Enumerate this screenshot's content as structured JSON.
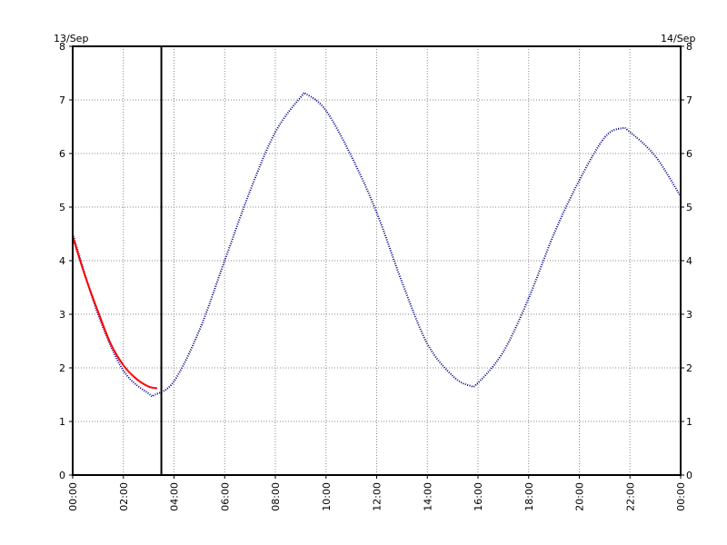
{
  "chart_data": {
    "type": "line",
    "title": "",
    "xlabel": "",
    "ylabel": "",
    "date_start_label": "13/Sep",
    "date_end_label": "14/Sep",
    "x_tick_labels": [
      "00:00",
      "02:00",
      "04:00",
      "06:00",
      "08:00",
      "10:00",
      "12:00",
      "14:00",
      "16:00",
      "18:00",
      "20:00",
      "22:00",
      "00:00"
    ],
    "y_tick_labels": [
      "0",
      "1",
      "2",
      "3",
      "4",
      "5",
      "6",
      "7",
      "8"
    ],
    "xlim": [
      "00:00",
      "24:00"
    ],
    "ylim": [
      0,
      8
    ],
    "grid": true,
    "current_time": "03:30",
    "series": [
      {
        "style": "dotted",
        "color": "#000080",
        "x": [
          "00:00",
          "01:00",
          "02:00",
          "03:00",
          "03:15",
          "04:00",
          "05:00",
          "06:00",
          "07:00",
          "08:00",
          "09:00",
          "09:15",
          "10:00",
          "11:00",
          "12:00",
          "13:00",
          "14:00",
          "15:00",
          "15:40",
          "16:00",
          "17:00",
          "18:00",
          "19:00",
          "20:00",
          "21:00",
          "21:40",
          "22:00",
          "23:00",
          "24:00"
        ],
        "y": [
          4.5,
          3.0,
          1.95,
          1.52,
          1.5,
          1.75,
          2.7,
          4.0,
          5.3,
          6.4,
          7.05,
          7.1,
          6.8,
          5.95,
          4.9,
          3.6,
          2.45,
          1.85,
          1.67,
          1.72,
          2.3,
          3.3,
          4.5,
          5.5,
          6.3,
          6.47,
          6.4,
          5.95,
          5.2
        ]
      },
      {
        "style": "solid",
        "color": "#ff0000",
        "x": [
          "00:00",
          "00:30",
          "01:00",
          "01:30",
          "02:00",
          "02:30",
          "03:00",
          "03:20"
        ],
        "y": [
          4.45,
          3.7,
          3.05,
          2.45,
          2.05,
          1.8,
          1.65,
          1.62
        ]
      }
    ]
  }
}
